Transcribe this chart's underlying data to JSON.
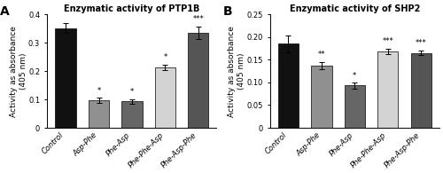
{
  "panel_A": {
    "title": "Enzymatic activity of PTP1B",
    "categories": [
      "Control",
      "Asp-Phe",
      "Phe-Asp",
      "Phe-Phe-Asp",
      "Phe-Asp-Phe"
    ],
    "values": [
      0.352,
      0.097,
      0.093,
      0.212,
      0.335
    ],
    "errors": [
      0.018,
      0.008,
      0.007,
      0.01,
      0.022
    ],
    "colors": [
      "#111111",
      "#909090",
      "#666666",
      "#d3d3d3",
      "#555555"
    ],
    "ylabel": "Activity as absorbance\n(405 nm)",
    "ylim": [
      0,
      0.4
    ],
    "yticks": [
      0.0,
      0.1,
      0.2,
      0.3,
      0.4
    ],
    "yticklabels": [
      "0",
      "0.1",
      "0.2",
      "0.3",
      "0.4"
    ],
    "significance": [
      "",
      "*",
      "*",
      "*",
      "***"
    ],
    "panel_label": "A"
  },
  "panel_B": {
    "title": "Enzymatic activity of SHP2",
    "categories": [
      "Control",
      "Asp-Phe",
      "Phe-Asp",
      "Phe-Phe-Asp",
      "Phe-Asp-Phe"
    ],
    "values": [
      0.185,
      0.137,
      0.093,
      0.168,
      0.165
    ],
    "errors": [
      0.018,
      0.008,
      0.006,
      0.006,
      0.005
    ],
    "colors": [
      "#111111",
      "#909090",
      "#666666",
      "#d3d3d3",
      "#555555"
    ],
    "ylabel": "Activity as absorbance\n(405 nm)",
    "ylim": [
      0,
      0.25
    ],
    "yticks": [
      0.0,
      0.05,
      0.1,
      0.15,
      0.2,
      0.25
    ],
    "yticklabels": [
      "0",
      "0.05",
      "0.10",
      "0.15",
      "0.20",
      "0.25"
    ],
    "significance": [
      "",
      "**",
      "*",
      "***",
      "***"
    ],
    "panel_label": "B"
  },
  "fig_width": 5.0,
  "fig_height": 1.95,
  "dpi": 100
}
